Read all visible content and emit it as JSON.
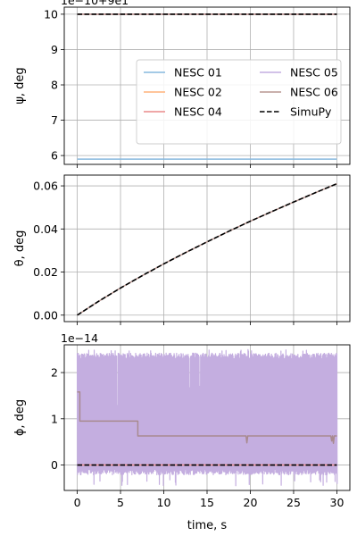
{
  "chart_data": [
    {
      "type": "line",
      "ylabel": "ψ, deg",
      "offset_text": "1e−10+9e1",
      "yticks": [
        "6",
        "7",
        "8",
        "9",
        "10"
      ],
      "ylim": [
        5.75,
        10.2
      ],
      "xlim": [
        -1.5,
        31.5
      ],
      "xticks": [
        0,
        5,
        10,
        15,
        20,
        25,
        30
      ],
      "series": [
        {
          "name": "NESC 01",
          "color": "#86b8de",
          "x": [
            0,
            30
          ],
          "y": [
            5.9,
            5.9
          ]
        },
        {
          "name": "NESC 02",
          "color": "#ffb27a",
          "x": [
            0,
            30
          ],
          "y": [
            10.0,
            10.0
          ]
        },
        {
          "name": "NESC 04",
          "color": "#ea8a8a",
          "x": [
            0,
            30
          ],
          "y": [
            10.0,
            10.0
          ]
        },
        {
          "name": "NESC 05",
          "color": "#c4aee0",
          "x": [
            0,
            30
          ],
          "y": [
            10.0,
            10.0
          ]
        },
        {
          "name": "NESC 06",
          "color": "#b99690",
          "x": [
            0,
            30
          ],
          "y": [
            10.0,
            10.0
          ]
        },
        {
          "name": "SimuPy",
          "color": "#000000",
          "dashed": true,
          "x": [
            0,
            30
          ],
          "y": [
            10.0,
            10.0
          ]
        }
      ],
      "legend": {
        "placement": "center-right",
        "columns": 2
      }
    },
    {
      "type": "line",
      "ylabel": "θ, deg",
      "yticks": [
        "0.00",
        "0.02",
        "0.04",
        "0.06"
      ],
      "ylim": [
        -0.003,
        0.065
      ],
      "xlim": [
        -1.5,
        31.5
      ],
      "xticks": [
        0,
        5,
        10,
        15,
        20,
        25,
        30
      ],
      "series": [
        {
          "name": "NESC 06",
          "color": "#b99690",
          "x": [
            0,
            2.5,
            5,
            7.5,
            10,
            12.5,
            15,
            17.5,
            20,
            22.5,
            25,
            27.5,
            30
          ],
          "y": [
            0,
            0.0065,
            0.0126,
            0.0183,
            0.0238,
            0.029,
            0.034,
            0.0389,
            0.0436,
            0.0481,
            0.0525,
            0.0568,
            0.061
          ]
        },
        {
          "name": "SimuPy",
          "color": "#000000",
          "dashed": true,
          "x": [
            0,
            2.5,
            5,
            7.5,
            10,
            12.5,
            15,
            17.5,
            20,
            22.5,
            25,
            27.5,
            30
          ],
          "y": [
            0,
            0.0065,
            0.0126,
            0.0183,
            0.0238,
            0.029,
            0.034,
            0.0389,
            0.0436,
            0.0481,
            0.0525,
            0.0568,
            0.061
          ]
        }
      ]
    },
    {
      "type": "line",
      "ylabel": "ϕ, deg",
      "offset_text": "1e−14",
      "xlabel": "time, s",
      "yticks": [
        "0",
        "1",
        "2"
      ],
      "ylim": [
        -0.55,
        2.6
      ],
      "xlim": [
        -1.5,
        31.5
      ],
      "xticks": [
        0,
        5,
        10,
        15,
        20,
        25,
        30
      ],
      "noise_band": {
        "name": "NESC 05",
        "color": "#c4aee0",
        "x_range": [
          0,
          30
        ],
        "typical_range": [
          -0.15,
          2.42
        ],
        "extreme_range": [
          -0.45,
          2.5
        ]
      },
      "series": [
        {
          "name": "NESC 06",
          "color": "#a88a8f",
          "step": true,
          "x": [
            0,
            0.3,
            0.3,
            7.0,
            7.0,
            19.5,
            19.6,
            19.7,
            29.3,
            29.4,
            29.5,
            29.6,
            29.7,
            30
          ],
          "y": [
            1.58,
            1.58,
            0.95,
            0.95,
            0.63,
            0.63,
            0.48,
            0.63,
            0.63,
            0.52,
            0.63,
            0.47,
            0.63,
            0.63
          ]
        },
        {
          "name": "NESC 04",
          "color": "#ea8a8a",
          "x": [
            0,
            30
          ],
          "y": [
            0,
            0
          ]
        },
        {
          "name": "SimuPy",
          "color": "#000000",
          "dashed": true,
          "x": [
            0,
            30
          ],
          "y": [
            0,
            0
          ]
        }
      ]
    }
  ]
}
